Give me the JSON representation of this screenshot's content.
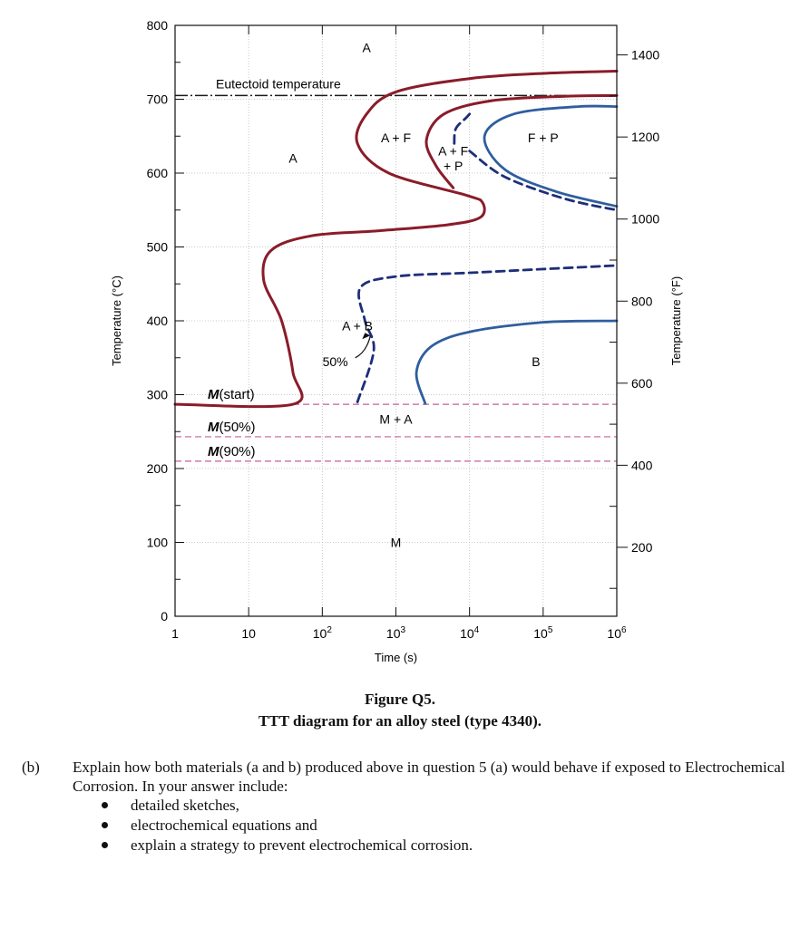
{
  "chart_data": {
    "type": "line",
    "title": "",
    "xlabel": "Time (s)",
    "ylabel": "Temperature (°C)",
    "ylabel_right": "Temperature (°F)",
    "x_scale": "log",
    "xlim": [
      1,
      1000000
    ],
    "ylim": [
      0,
      800
    ],
    "x_ticks": [
      {
        "value": 1,
        "base": "1",
        "exp": ""
      },
      {
        "value": 10,
        "base": "10",
        "exp": ""
      },
      {
        "value": 100,
        "base": "10",
        "exp": "2"
      },
      {
        "value": 1000,
        "base": "10",
        "exp": "3"
      },
      {
        "value": 10000,
        "base": "10",
        "exp": "4"
      },
      {
        "value": 100000,
        "base": "10",
        "exp": "5"
      },
      {
        "value": 1000000,
        "base": "10",
        "exp": "6"
      }
    ],
    "y_ticks": [
      0,
      100,
      200,
      300,
      400,
      500,
      600,
      700,
      800
    ],
    "y_right_ticks": [
      200,
      400,
      600,
      800,
      1000,
      1200,
      1400
    ],
    "colors": {
      "red": "#8a1c2a",
      "blue": "#2f5e9e",
      "navy": "#1e2e7a",
      "pink": "#c0609a",
      "grid": "#b9b9b9"
    },
    "eutectoid": {
      "label": "Eutectoid temperature",
      "y": 705
    },
    "martensite_lines": [
      {
        "label": "M(start)",
        "y": 287
      },
      {
        "label": "M(50%)",
        "y": 243
      },
      {
        "label": "M(90%)",
        "y": 210
      }
    ],
    "series": [
      {
        "style": "red-solid",
        "points": [
          [
            1,
            287
          ],
          [
            40,
            287
          ],
          [
            40,
            330
          ],
          [
            28,
            400
          ],
          [
            16,
            455
          ],
          [
            20,
            495
          ],
          [
            70,
            515
          ],
          [
            600,
            522
          ],
          [
            5000,
            530
          ],
          [
            14000,
            540
          ],
          [
            15000,
            560
          ],
          [
            9000,
            570
          ],
          [
            800,
            600
          ],
          [
            300,
            640
          ],
          [
            400,
            680
          ],
          [
            1000,
            710
          ],
          [
            10000,
            728
          ],
          [
            100000,
            735
          ],
          [
            1000000,
            738
          ]
        ]
      },
      {
        "style": "red-solid",
        "points": [
          [
            6000,
            580
          ],
          [
            3500,
            610
          ],
          [
            2600,
            645
          ],
          [
            4500,
            680
          ],
          [
            20000,
            698
          ],
          [
            200000,
            704
          ],
          [
            1000000,
            705
          ]
        ]
      },
      {
        "style": "navy-dashed",
        "points": [
          [
            6200,
            640
          ],
          [
            6500,
            660
          ],
          [
            9000,
            675
          ],
          [
            10000,
            680
          ]
        ]
      },
      {
        "style": "navy-dashed",
        "points": [
          [
            10000,
            630
          ],
          [
            30000,
            595
          ],
          [
            200000,
            565
          ],
          [
            1000000,
            550
          ]
        ]
      },
      {
        "style": "blue-solid",
        "points": [
          [
            1000000,
            555
          ],
          [
            150000,
            575
          ],
          [
            30000,
            605
          ],
          [
            16000,
            650
          ],
          [
            40000,
            680
          ],
          [
            300000,
            690
          ],
          [
            1000000,
            690
          ]
        ]
      },
      {
        "style": "navy-dashed",
        "points": [
          [
            300,
            290
          ],
          [
            500,
            360
          ],
          [
            380,
            400
          ],
          [
            330,
            445
          ],
          [
            1000,
            460
          ],
          [
            10000,
            465
          ],
          [
            100000,
            470
          ],
          [
            1000000,
            475
          ]
        ]
      },
      {
        "style": "blue-solid",
        "points": [
          [
            2500,
            288
          ],
          [
            1900,
            330
          ],
          [
            3000,
            365
          ],
          [
            10000,
            385
          ],
          [
            100000,
            398
          ],
          [
            1000000,
            400
          ]
        ]
      }
    ],
    "region_labels": [
      {
        "text": "A",
        "x": 400,
        "y": 770
      },
      {
        "text": "A",
        "x": 40,
        "y": 620
      },
      {
        "text": "A + F",
        "x": 1000,
        "y": 648
      },
      {
        "text": "A + F",
        "x": 6000,
        "y": 630
      },
      {
        "text": "+ P",
        "x": 6000,
        "y": 610
      },
      {
        "text": "F + P",
        "x": 100000,
        "y": 648
      },
      {
        "text": "A + B",
        "x": 300,
        "y": 393
      },
      {
        "text": "B",
        "x": 80000,
        "y": 345
      },
      {
        "text": "M + A",
        "x": 1000,
        "y": 267
      },
      {
        "text": "M",
        "x": 1000,
        "y": 100
      }
    ],
    "annotations": [
      {
        "text": "50%",
        "x": 150,
        "y": 345,
        "arrow_to": [
          450,
          380
        ]
      }
    ]
  },
  "figure": {
    "title": "Figure Q5.",
    "subtitle": "TTT diagram for an alloy steel (type 4340)."
  },
  "question": {
    "label": "(b)",
    "text": "Explain how both materials (a and b) produced above in question 5 (a) would behave if exposed to Electrochemical Corrosion. In your answer include:",
    "bullets": [
      "detailed sketches,",
      "electrochemical equations and",
      "explain a strategy to prevent electrochemical corrosion."
    ]
  }
}
